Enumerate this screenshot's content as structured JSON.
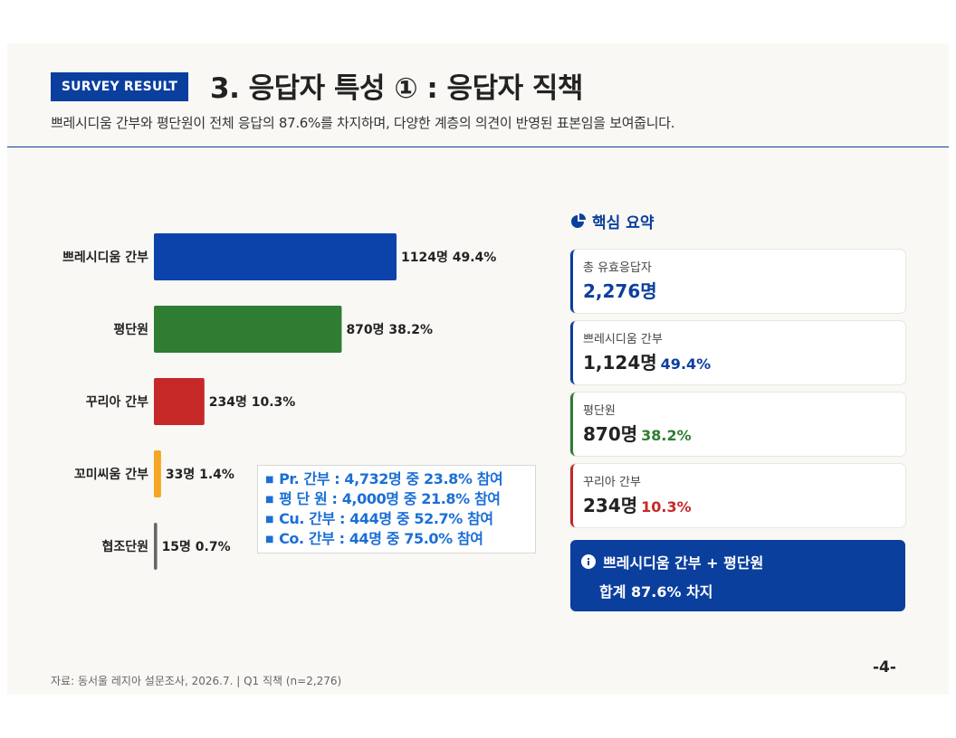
{
  "header": {
    "badge": "SURVEY RESULT",
    "title": "3. 응답자 특성 ① : 응답자 직책",
    "subtitle": "쁘레시디움 간부와 평단원이 전체 응답의 87.6%를 차지하며, 다양한 계층의 의견이 반영된 표본임을 보여줍니다."
  },
  "chart_data": {
    "type": "bar",
    "orientation": "horizontal",
    "categories": [
      "쁘레시디움 간부",
      "평단원",
      "꾸리아 간부",
      "꼬미씨움 간부",
      "협조단원"
    ],
    "values": [
      1124,
      870,
      234,
      33,
      15
    ],
    "percents": [
      "49.4%",
      "38.2%",
      "10.3%",
      "1.4%",
      "0.7%"
    ],
    "value_labels": [
      "1124명",
      "870명",
      "234명",
      "33명",
      "15명"
    ],
    "colors": [
      "#0b43aa",
      "#2f7d32",
      "#c62828",
      "#f5a623",
      "#666666"
    ],
    "xlim": [
      0,
      1124
    ]
  },
  "note": {
    "lines": [
      "Pr.  간부 : 4,732명 중 23.8% 참여",
      "평  단  원 : 4,000명 중 21.8% 참여",
      "Cu. 간부 : 444명 중      52.7% 참여",
      "Co. 간부 : 44명 중        75.0% 참여"
    ],
    "bullet": "■"
  },
  "summary": {
    "heading": "핵심 요약",
    "cards": [
      {
        "label": "총 유효응답자",
        "value": "2,276명",
        "pct": "",
        "color": "#0b3f9e",
        "value_color": "#0b3f9e"
      },
      {
        "label": "쁘레시디움 간부",
        "value": "1,124명",
        "pct": "49.4%",
        "color": "#0b3f9e",
        "value_color": "#222222"
      },
      {
        "label": "평단원",
        "value": "870명",
        "pct": "38.2%",
        "color": "#2f7d32",
        "value_color": "#222222"
      },
      {
        "label": "꾸리아 간부",
        "value": "234명",
        "pct": "10.3%",
        "color": "#c62828",
        "value_color": "#222222"
      }
    ],
    "total": {
      "line1": "쁘레시디움 간부 + 평단원",
      "line2": "합계 87.6% 차지"
    }
  },
  "footer": {
    "source": "자료: 동서울 레지아 설문조사, 2026.7.  |  Q1 직책 (n=2,276)",
    "page": "-4-"
  }
}
